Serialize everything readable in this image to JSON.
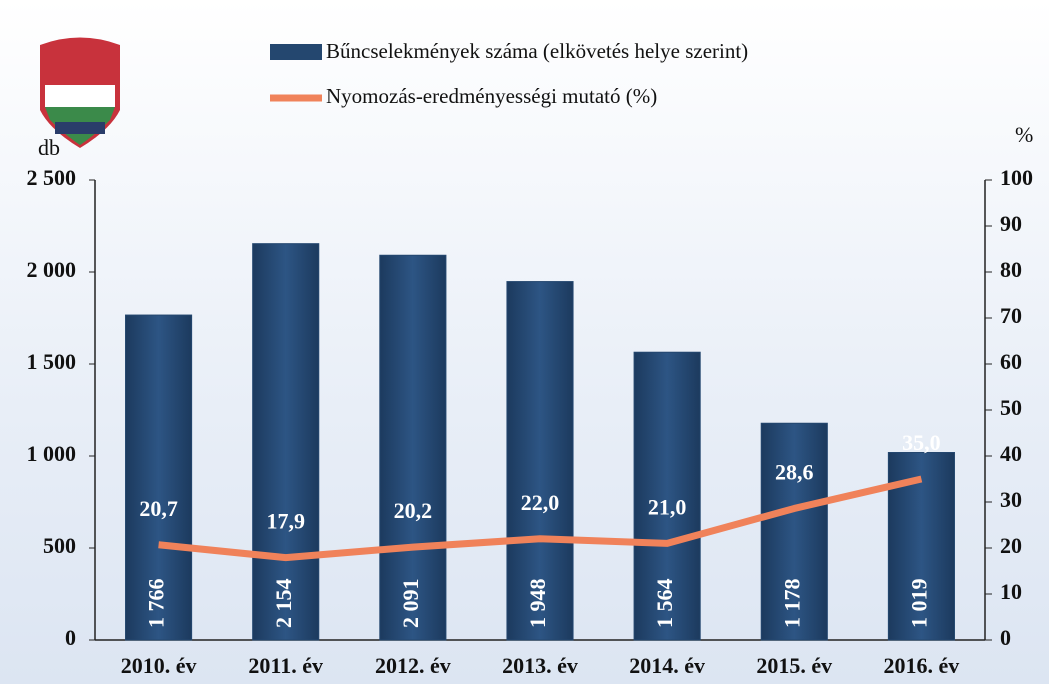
{
  "chart_data": {
    "type": "bar",
    "categories": [
      "2010. év",
      "2011. év",
      "2012. év",
      "2013. év",
      "2014. év",
      "2015. év",
      "2016. év"
    ],
    "series": [
      {
        "name": "Bűncselekmények száma (elkövetés helye szerint)",
        "type": "bar",
        "color": "#24476f",
        "values": [
          1766,
          2154,
          2091,
          1948,
          1564,
          1178,
          1019
        ],
        "value_labels": [
          "1 766",
          "2 154",
          "2 091",
          "1 948",
          "1 564",
          "1 178",
          "1 019"
        ]
      },
      {
        "name": "Nyomozás-eredményességi mutató (%)",
        "type": "line",
        "axis": "y2",
        "color": "#f0825a",
        "values": [
          20.7,
          17.9,
          20.2,
          22.0,
          21.0,
          28.6,
          35.0
        ],
        "value_labels": [
          "20,7",
          "17,9",
          "20,2",
          "22,0",
          "21,0",
          "28,6",
          "35,0"
        ]
      }
    ],
    "ylabel": "db",
    "y2label": "%",
    "ylim": [
      0,
      2500
    ],
    "yticks": [
      0,
      500,
      {
        "value": 1000,
        "label": "1 000"
      },
      {
        "value": 1500,
        "label": "1 500"
      },
      {
        "value": 2000,
        "label": "2 000"
      },
      {
        "value": 2500,
        "label": "2 500"
      }
    ],
    "y2lim": [
      0,
      100
    ],
    "y2ticks": [
      0,
      10,
      20,
      30,
      40,
      50,
      60,
      70,
      80,
      90,
      100
    ],
    "legend": "top"
  }
}
